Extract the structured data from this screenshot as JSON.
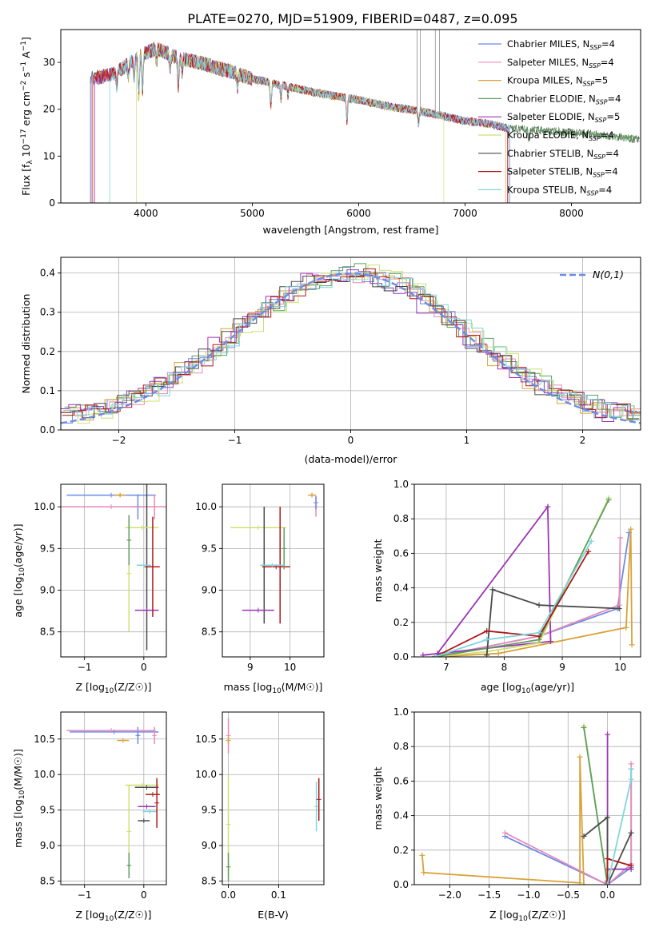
{
  "figure": {
    "title": "PLATE=0270, MJD=51909, FIBERID=0487, z=0.095"
  },
  "series_styles": [
    {
      "name": "Chabrier MILES, N_SSP=4",
      "label_main": "Chabrier MILES, N",
      "label_sub": "SSP",
      "label_tail": "=4",
      "color": "#6b8ce8"
    },
    {
      "name": "Salpeter MILES, N_SSP=4",
      "label_main": "Salpeter MILES, N",
      "label_sub": "SSP",
      "label_tail": "=4",
      "color": "#ea8ab8"
    },
    {
      "name": "Kroupa MILES, N_SSP=5",
      "label_main": "Kroupa MILES, N",
      "label_sub": "SSP",
      "label_tail": "=5",
      "color": "#d9a23a"
    },
    {
      "name": "Chabrier ELODIE, N_SSP=4",
      "label_main": "Chabrier ELODIE, N",
      "label_sub": "SSP",
      "label_tail": "=4",
      "color": "#5f9e5f"
    },
    {
      "name": "Salpeter ELODIE, N_SSP=5",
      "label_main": "Salpeter ELODIE, N",
      "label_sub": "SSP",
      "label_tail": "=5",
      "color": "#9b35b5"
    },
    {
      "name": "Kroupa ELODIE, N_SSP=4",
      "label_main": "Kroupa ELODIE, N",
      "label_sub": "SSP",
      "label_tail": "=4",
      "color": "#cce070"
    },
    {
      "name": "Chabrier STELIB, N_SSP=4",
      "label_main": "Chabrier STELIB, N",
      "label_sub": "SSP",
      "label_tail": "=4",
      "color": "#4a4a4a"
    },
    {
      "name": "Salpeter STELIB, N_SSP=4",
      "label_main": "Salpeter STELIB, N",
      "label_sub": "SSP",
      "label_tail": "=4",
      "color": "#b01818"
    },
    {
      "name": "Kroupa STELIB, N_SSP=4",
      "label_main": "Kroupa STELIB, N",
      "label_sub": "SSP",
      "label_tail": "=4",
      "color": "#7fd6dd"
    }
  ],
  "chart_data": [
    {
      "id": "spectrum",
      "type": "line",
      "xlabel": "wavelength [Angstrom, rest frame]",
      "ylabel": "Flux [f_λ 10^-17 erg cm^-2 s^-1 A^-1]",
      "xlim": [
        3200,
        8650
      ],
      "ylim": [
        0,
        37
      ],
      "xticks": [
        4000,
        5000,
        6000,
        7000,
        8000
      ],
      "yticks": [
        0,
        10,
        20,
        30
      ],
      "grid": false,
      "legend": "right",
      "continuum": [
        [
          3480,
          26.5
        ],
        [
          3700,
          27.5
        ],
        [
          3950,
          31.5
        ],
        [
          4100,
          33
        ],
        [
          4300,
          31
        ],
        [
          4500,
          30
        ],
        [
          4800,
          28
        ],
        [
          5000,
          26.5
        ],
        [
          5300,
          25
        ],
        [
          5600,
          23.5
        ],
        [
          6000,
          22
        ],
        [
          6300,
          20.5
        ],
        [
          6600,
          19.5
        ],
        [
          6800,
          18.5
        ],
        [
          7000,
          17.5
        ],
        [
          7200,
          17
        ],
        [
          7400,
          16
        ],
        [
          7700,
          15.5
        ],
        [
          8000,
          15
        ],
        [
          8300,
          14.5
        ],
        [
          8640,
          13.5
        ]
      ],
      "absorption_lines": [
        [
          3727,
          3
        ],
        [
          3835,
          3
        ],
        [
          3889,
          4
        ],
        [
          3933,
          9
        ],
        [
          3968,
          8
        ],
        [
          4101,
          3
        ],
        [
          4227,
          3
        ],
        [
          4304,
          6
        ],
        [
          4340,
          3
        ],
        [
          4861,
          3
        ],
        [
          5175,
          5
        ],
        [
          5270,
          3
        ],
        [
          5335,
          2
        ],
        [
          5890,
          5
        ],
        [
          6563,
          3
        ],
        [
          7600,
          3
        ]
      ],
      "series_cutoffs": [
        {
          "start": 3480,
          "end": 7400
        },
        {
          "start": 3490,
          "end": 7410
        },
        {
          "start": 3500,
          "end": 7380
        },
        {
          "start": 3480,
          "end": 8640
        },
        {
          "start": 3520,
          "end": 7420
        },
        {
          "start": 3910,
          "end": 6800
        },
        {
          "start": 3480,
          "end": 8640
        },
        {
          "start": 3500,
          "end": 7400
        },
        {
          "start": 3660,
          "end": 7420
        }
      ],
      "residual_spikes": [
        [
          6550,
          37
        ],
        [
          6580,
          37
        ],
        [
          6720,
          37
        ],
        [
          6760,
          37
        ]
      ]
    },
    {
      "id": "histogram",
      "type": "step",
      "xlabel": "(data-model)/error",
      "ylabel": "Normed distribution",
      "xlim": [
        -2.5,
        2.5
      ],
      "ylim": [
        0,
        0.44
      ],
      "xticks": [
        -2,
        -1,
        0,
        1,
        2
      ],
      "yticks": [
        0.0,
        0.1,
        0.2,
        0.3,
        0.4
      ],
      "grid": true,
      "legend": "top-right",
      "legend_label": "N(0,1)",
      "reference_curve": {
        "name": "N(0,1)",
        "mean": 0,
        "sigma": 1,
        "color": "#6b8ce8"
      },
      "bin_width": 0.1,
      "series_shifts": [
        0.0,
        0.05,
        -0.05,
        0.08,
        -0.08,
        0.12,
        -0.03,
        0.03,
        0.1
      ]
    },
    {
      "id": "age_vs_Z",
      "type": "errorbar",
      "xlabel": "Z [log10(Z/Z☉)]",
      "ylabel": "age  [log10(age/yr)]",
      "xlim": [
        -1.4,
        0.38
      ],
      "ylim": [
        8.2,
        10.27
      ],
      "xticks": [
        -1,
        0
      ],
      "yticks": [
        8.5,
        9.0,
        9.5,
        10.0
      ],
      "grid": true,
      "points": [
        {
          "series": 0,
          "x": -0.55,
          "xerr": 0.75,
          "y": 10.14,
          "yerr": 0.0
        },
        {
          "series": 0,
          "x": -0.1,
          "xerr": 0.1,
          "y": 10.0,
          "yerr": 0.15
        },
        {
          "series": 1,
          "x": -0.55,
          "xerr": 0.95,
          "y": 10.0,
          "yerr": 0.0
        },
        {
          "series": 1,
          "x": 0.18,
          "xerr": 0.02,
          "y": 10.0,
          "yerr": 0.15
        },
        {
          "series": 2,
          "x": -0.4,
          "xerr": 0.1,
          "y": 10.14,
          "yerr": 0.02
        },
        {
          "series": 6,
          "x": 0.05,
          "xerr": 0.02,
          "y": 9.28,
          "yerr": 1.0
        },
        {
          "series": 4,
          "x": 0.05,
          "xerr": 0.2,
          "y": 8.76,
          "yerr": 0.0
        },
        {
          "series": 5,
          "x": -0.03,
          "xerr": 0.28,
          "y": 9.75,
          "yerr": 0.0
        },
        {
          "series": 5,
          "x": -0.25,
          "xerr": 0.0,
          "y": 9.2,
          "yerr": 0.7
        },
        {
          "series": 7,
          "x": 0.15,
          "xerr": 0.12,
          "y": 9.28,
          "yerr": 0.6
        },
        {
          "series": 8,
          "x": 0.0,
          "xerr": 0.12,
          "y": 9.3,
          "yerr": 0.0
        },
        {
          "series": 3,
          "x": -0.25,
          "xerr": 0.02,
          "y": 9.6,
          "yerr": 0.3
        }
      ]
    },
    {
      "id": "age_vs_mass",
      "type": "errorbar",
      "xlabel": "mass [log10(M/M☉)]",
      "ylabel": "",
      "xlim": [
        8.3,
        10.85
      ],
      "ylim": [
        8.2,
        10.27
      ],
      "xticks": [
        9,
        10
      ],
      "yticks": [
        8.5,
        9.0,
        9.5,
        10.0
      ],
      "grid": true,
      "points": [
        {
          "series": 5,
          "x": 9.2,
          "xerr": 0.7,
          "y": 9.75,
          "yerr": 0.0
        },
        {
          "series": 6,
          "x": 9.35,
          "xerr": 0.0,
          "y": 9.3,
          "yerr": 0.7
        },
        {
          "series": 4,
          "x": 9.2,
          "xerr": 0.4,
          "y": 8.76,
          "yerr": 0.0
        },
        {
          "series": 7,
          "x": 9.65,
          "xerr": 0.35,
          "y": 9.28,
          "yerr": 0.0
        },
        {
          "series": 7,
          "x": 9.75,
          "xerr": 0.0,
          "y": 9.3,
          "yerr": 0.7
        },
        {
          "series": 3,
          "x": 9.85,
          "xerr": 0.0,
          "y": 9.5,
          "yerr": 0.25
        },
        {
          "series": 8,
          "x": 9.55,
          "xerr": 0.3,
          "y": 9.3,
          "yerr": 0.0
        },
        {
          "series": 1,
          "x": 10.65,
          "xerr": 0.0,
          "y": 10.0,
          "yerr": 0.12
        },
        {
          "series": 2,
          "x": 10.55,
          "xerr": 0.1,
          "y": 10.14,
          "yerr": 0.02
        },
        {
          "series": 0,
          "x": 10.65,
          "xerr": 0.0,
          "y": 10.05,
          "yerr": 0.08
        }
      ]
    },
    {
      "id": "mass_weight_vs_age",
      "type": "line",
      "xlabel": "age  [log10(age/yr)]",
      "ylabel": "mass weight",
      "xlim": [
        6.45,
        10.35
      ],
      "ylim": [
        0,
        1
      ],
      "xticks": [
        7,
        8,
        9,
        10
      ],
      "yticks": [
        0.0,
        0.2,
        0.4,
        0.6,
        0.8,
        1.0
      ],
      "grid": true,
      "series": [
        {
          "series": 0,
          "points": [
            [
              6.8,
              0.0
            ],
            [
              8.6,
              0.12
            ],
            [
              9.95,
              0.28
            ],
            [
              10.15,
              0.72
            ]
          ]
        },
        {
          "series": 1,
          "points": [
            [
              6.8,
              0.0
            ],
            [
              8.6,
              0.12
            ],
            [
              9.98,
              0.3
            ],
            [
              10.0,
              0.69
            ]
          ]
        },
        {
          "series": 2,
          "points": [
            [
              6.8,
              0.0
            ],
            [
              7.9,
              0.02
            ],
            [
              10.1,
              0.17
            ],
            [
              10.18,
              0.74
            ],
            [
              10.2,
              0.07
            ]
          ]
        },
        {
          "series": 4,
          "points": [
            [
              6.6,
              0.01
            ],
            [
              8.8,
              0.09
            ],
            [
              8.75,
              0.87
            ],
            [
              6.85,
              0.02
            ]
          ]
        },
        {
          "series": 5,
          "points": [
            [
              6.8,
              0.0
            ],
            [
              7.7,
              0.03
            ],
            [
              8.6,
              0.08
            ],
            [
              9.8,
              0.92
            ]
          ]
        },
        {
          "series": 3,
          "points": [
            [
              6.8,
              0.0
            ],
            [
              8.6,
              0.1
            ],
            [
              9.8,
              0.91
            ]
          ]
        },
        {
          "series": 6,
          "points": [
            [
              7.7,
              0.01
            ],
            [
              7.8,
              0.39
            ],
            [
              8.6,
              0.3
            ],
            [
              9.98,
              0.28
            ]
          ]
        },
        {
          "series": 7,
          "points": [
            [
              6.8,
              0.0
            ],
            [
              7.7,
              0.15
            ],
            [
              8.6,
              0.12
            ],
            [
              9.45,
              0.61
            ]
          ]
        },
        {
          "series": 8,
          "points": [
            [
              6.8,
              0.0
            ],
            [
              7.7,
              0.1
            ],
            [
              8.6,
              0.14
            ],
            [
              9.5,
              0.67
            ]
          ]
        }
      ]
    },
    {
      "id": "mass_vs_Z",
      "type": "errorbar",
      "xlabel": "Z [log10(Z/Z☉)]",
      "ylabel": "mass [log10(M/M☉)]",
      "xlim": [
        -1.4,
        0.38
      ],
      "ylim": [
        8.45,
        10.88
      ],
      "xticks": [
        -1,
        0
      ],
      "yticks": [
        8.5,
        9.0,
        9.5,
        10.0,
        10.5
      ],
      "grid": true,
      "points": [
        {
          "series": 0,
          "x": -0.5,
          "xerr": 0.75,
          "y": 10.6,
          "yerr": 0.0
        },
        {
          "series": 0,
          "x": -0.1,
          "xerr": 0.02,
          "y": 10.55,
          "yerr": 0.12
        },
        {
          "series": 1,
          "x": -0.55,
          "xerr": 0.75,
          "y": 10.62,
          "yerr": 0.0
        },
        {
          "series": 1,
          "x": 0.18,
          "xerr": 0.0,
          "y": 10.55,
          "yerr": 0.12
        },
        {
          "series": 2,
          "x": -0.35,
          "xerr": 0.1,
          "y": 10.48,
          "yerr": 0.0
        },
        {
          "series": 5,
          "x": -0.03,
          "xerr": 0.28,
          "y": 9.85,
          "yerr": 0.0
        },
        {
          "series": 5,
          "x": -0.25,
          "xerr": 0.0,
          "y": 9.2,
          "yerr": 0.65
        },
        {
          "series": 3,
          "x": -0.25,
          "xerr": 0.02,
          "y": 8.72,
          "yerr": 0.18
        },
        {
          "series": 6,
          "x": 0.05,
          "xerr": 0.2,
          "y": 9.82,
          "yerr": 0.0
        },
        {
          "series": 7,
          "x": 0.15,
          "xerr": 0.12,
          "y": 9.72,
          "yerr": 0.0
        },
        {
          "series": 4,
          "x": 0.05,
          "xerr": 0.15,
          "y": 9.55,
          "yerr": 0.0
        },
        {
          "series": 8,
          "x": 0.1,
          "xerr": 0.12,
          "y": 9.48,
          "yerr": 0.0
        },
        {
          "series": 6,
          "x": 0.0,
          "xerr": 0.1,
          "y": 9.35,
          "yerr": 0.0
        },
        {
          "series": 7,
          "x": 0.22,
          "xerr": 0.0,
          "y": 9.6,
          "yerr": 0.35
        }
      ]
    },
    {
      "id": "mass_vs_ebv",
      "type": "errorbar",
      "xlabel": "E(B-V)",
      "ylabel": "",
      "xlim": [
        -0.012,
        0.19
      ],
      "ylim": [
        8.45,
        10.88
      ],
      "xticks": [
        0.0,
        0.1
      ],
      "yticks": [
        8.5,
        9.0,
        9.5,
        10.0,
        10.5
      ],
      "grid": true,
      "points": [
        {
          "series": 5,
          "x": 0.0,
          "xerr": 0.0,
          "y": 9.3,
          "yerr": 0.7
        },
        {
          "series": 3,
          "x": 0.0,
          "xerr": 0.0,
          "y": 8.7,
          "yerr": 0.2
        },
        {
          "series": 1,
          "x": 0.0,
          "xerr": 0.0,
          "y": 10.55,
          "yerr": 0.25
        },
        {
          "series": 2,
          "x": 0.0,
          "xerr": 0.0,
          "y": 10.48,
          "yerr": 0.05
        },
        {
          "series": 8,
          "x": 0.175,
          "xerr": 0.0,
          "y": 9.55,
          "yerr": 0.35
        },
        {
          "series": 7,
          "x": 0.18,
          "xerr": 0.0,
          "y": 9.65,
          "yerr": 0.3
        }
      ]
    },
    {
      "id": "mass_weight_vs_Z",
      "type": "line",
      "xlabel": "Z [log10(Z/Z☉)]",
      "ylabel": "mass weight",
      "xlim": [
        -2.45,
        0.42
      ],
      "ylim": [
        0,
        1
      ],
      "xticks": [
        -2.0,
        -1.5,
        -1.0,
        -0.5,
        0.0
      ],
      "yticks": [
        0.0,
        0.2,
        0.4,
        0.6,
        0.8,
        1.0
      ],
      "grid": true,
      "series": [
        {
          "series": 0,
          "points": [
            [
              -1.3,
              0.28
            ],
            [
              0.0,
              0.0
            ],
            [
              0.3,
              0.1
            ],
            [
              0.3,
              0.67
            ]
          ]
        },
        {
          "series": 1,
          "points": [
            [
              -1.3,
              0.3
            ],
            [
              0.0,
              0.0
            ],
            [
              0.3,
              0.12
            ],
            [
              0.3,
              0.7
            ]
          ]
        },
        {
          "series": 2,
          "points": [
            [
              -2.35,
              0.17
            ],
            [
              -2.33,
              0.07
            ],
            [
              -0.35,
              0.01
            ],
            [
              -0.35,
              0.74
            ],
            [
              -0.3,
              0.0
            ]
          ]
        },
        {
          "series": 4,
          "points": [
            [
              0.0,
              0.01
            ],
            [
              0.0,
              0.87
            ],
            [
              0.0,
              0.09
            ],
            [
              0.3,
              0.09
            ]
          ]
        },
        {
          "series": 5,
          "points": [
            [
              -0.3,
              0.92
            ],
            [
              0.0,
              0.0
            ],
            [
              0.0,
              0.08
            ]
          ]
        },
        {
          "series": 3,
          "points": [
            [
              -0.3,
              0.91
            ],
            [
              0.0,
              0.0
            ]
          ]
        },
        {
          "series": 6,
          "points": [
            [
              -0.3,
              0.28
            ],
            [
              0.0,
              0.39
            ],
            [
              0.0,
              0.0
            ],
            [
              0.3,
              0.3
            ]
          ]
        },
        {
          "series": 7,
          "points": [
            [
              0.0,
              0.02
            ],
            [
              0.0,
              0.15
            ],
            [
              0.3,
              0.11
            ]
          ]
        },
        {
          "series": 8,
          "points": [
            [
              0.0,
              0.0
            ],
            [
              0.3,
              0.61
            ],
            [
              0.3,
              0.67
            ]
          ]
        }
      ]
    }
  ]
}
